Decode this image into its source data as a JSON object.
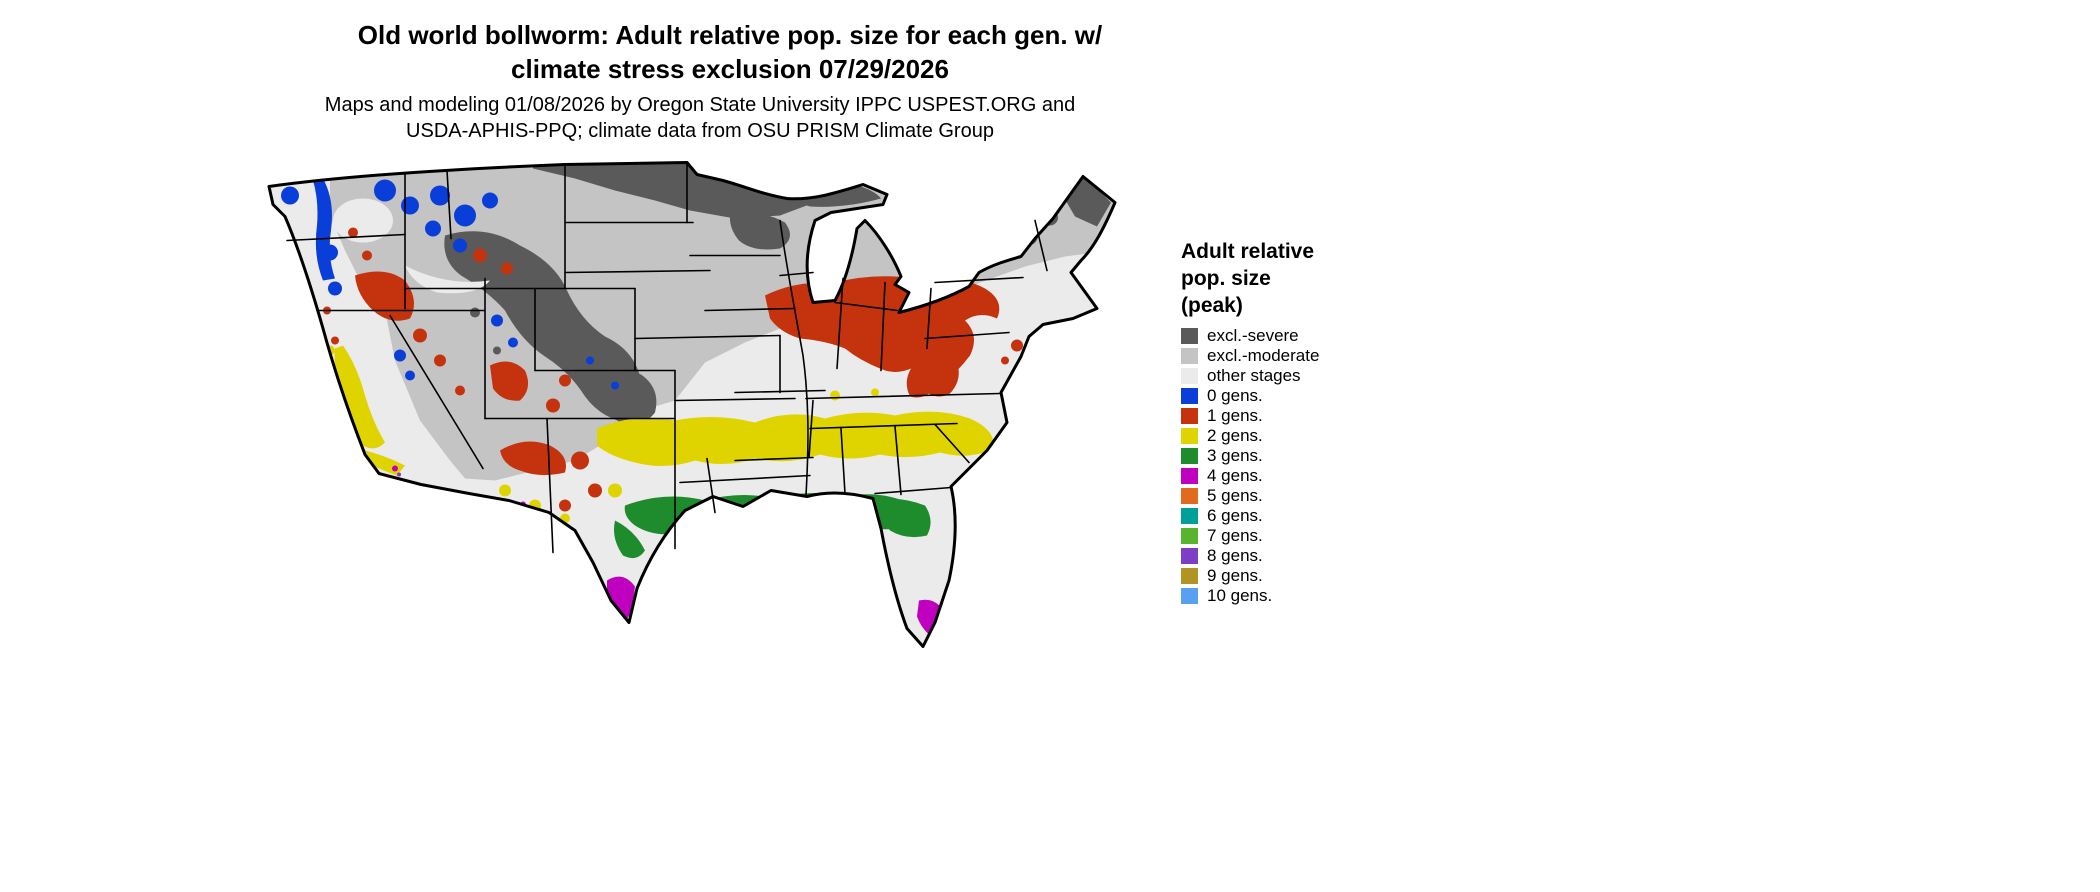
{
  "title": {
    "line1": "Old world bollworm: Adult relative pop. size for each gen. w/",
    "line2": "climate stress exclusion 07/29/2026"
  },
  "subtitle": {
    "line1": "Maps and modeling 01/08/2026 by Oregon State University IPPC USPEST.ORG and",
    "line2": "USDA-APHIS-PPQ; climate data from OSU PRISM Climate Group"
  },
  "legend": {
    "title_lines": [
      "Adult relative",
      "pop. size",
      "(peak)"
    ],
    "items": [
      {
        "key": "excl_severe",
        "label": "excl.-severe",
        "color": "#5a5a5a"
      },
      {
        "key": "excl_moderate",
        "label": "excl.-moderate",
        "color": "#c4c4c4"
      },
      {
        "key": "other_stages",
        "label": "other stages",
        "color": "#ebebeb"
      },
      {
        "key": "gens0",
        "label": "0 gens.",
        "color": "#0a3ed8"
      },
      {
        "key": "gens1",
        "label": "1 gens.",
        "color": "#c5330e"
      },
      {
        "key": "gens2",
        "label": "2 gens.",
        "color": "#e0d400"
      },
      {
        "key": "gens3",
        "label": "3 gens.",
        "color": "#1e8b2d"
      },
      {
        "key": "gens4",
        "label": "4 gens.",
        "color": "#bf00bf"
      },
      {
        "key": "gens5",
        "label": "5 gens.",
        "color": "#e06a1e"
      },
      {
        "key": "gens6",
        "label": "6 gens.",
        "color": "#00a09a"
      },
      {
        "key": "gens7",
        "label": "7 gens.",
        "color": "#58b32e"
      },
      {
        "key": "gens8",
        "label": "8 gens.",
        "color": "#7d3ec4"
      },
      {
        "key": "gens9",
        "label": "9 gens.",
        "color": "#b29422"
      },
      {
        "key": "gens10",
        "label": "10 gens.",
        "color": "#5aa0f0"
      }
    ]
  },
  "map": {
    "region": "Continental United States",
    "type": "categorical raster map of adult relative population size per generation"
  }
}
